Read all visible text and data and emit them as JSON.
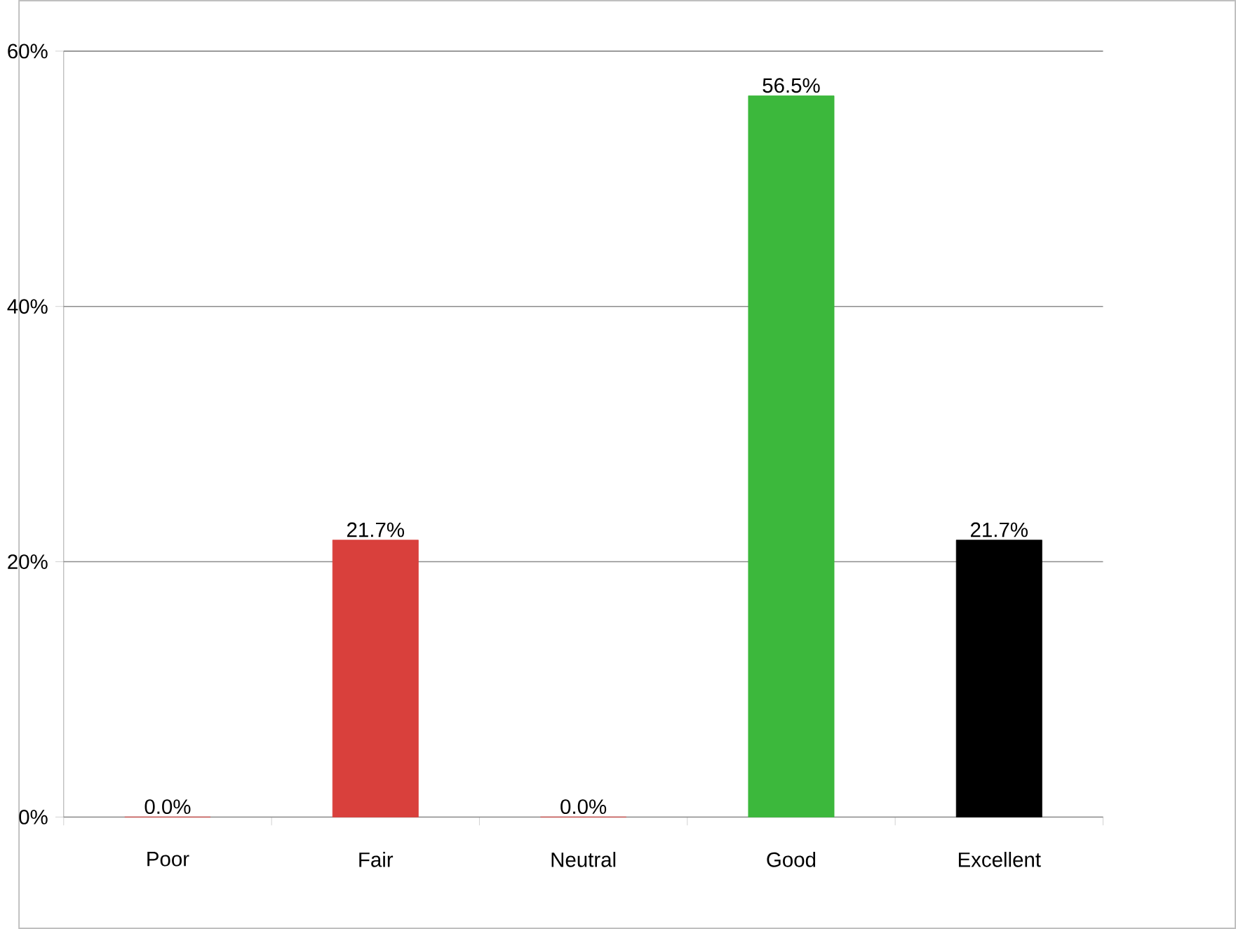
{
  "chart_data": {
    "type": "bar",
    "categories": [
      "Poor",
      "Fair",
      "Neutral",
      "Good",
      "Excellent"
    ],
    "values": [
      0.0,
      21.7,
      0.0,
      56.5,
      21.7
    ],
    "colors": [
      "#d9403c",
      "#d9403c",
      "#d9403c",
      "#3cb83c",
      "#000000"
    ],
    "value_labels": [
      "0.0%",
      "21.7%",
      "0.0%",
      "56.5%",
      "21.7%"
    ],
    "ylim": [
      0,
      60
    ],
    "yticks": [
      {
        "value": 0,
        "label": "0%"
      },
      {
        "value": 20,
        "label": "20%"
      },
      {
        "value": 40,
        "label": "40%"
      },
      {
        "value": 60,
        "label": "60%"
      }
    ],
    "grid": "y"
  }
}
